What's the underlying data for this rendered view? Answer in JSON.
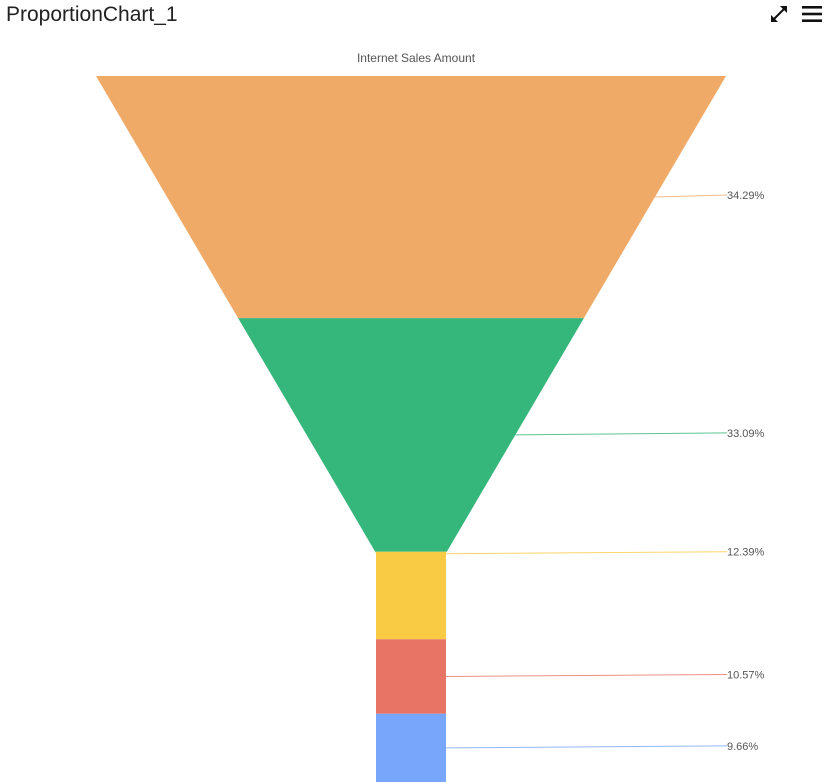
{
  "header": {
    "title": "ProportionChart_1",
    "expand_icon": "expand-icon",
    "menu_icon": "hamburger-menu-icon"
  },
  "chart_data": {
    "type": "funnel",
    "title": "Internet Sales Amount",
    "labels": [
      "34.29%",
      "33.09%",
      "12.39%",
      "10.57%",
      "9.66%"
    ],
    "values": [
      34.29,
      33.09,
      12.39,
      10.57,
      9.66
    ],
    "colors": [
      "#F0AA68",
      "#35B77B",
      "#F9CB45",
      "#E87466",
      "#78A6FA"
    ]
  }
}
